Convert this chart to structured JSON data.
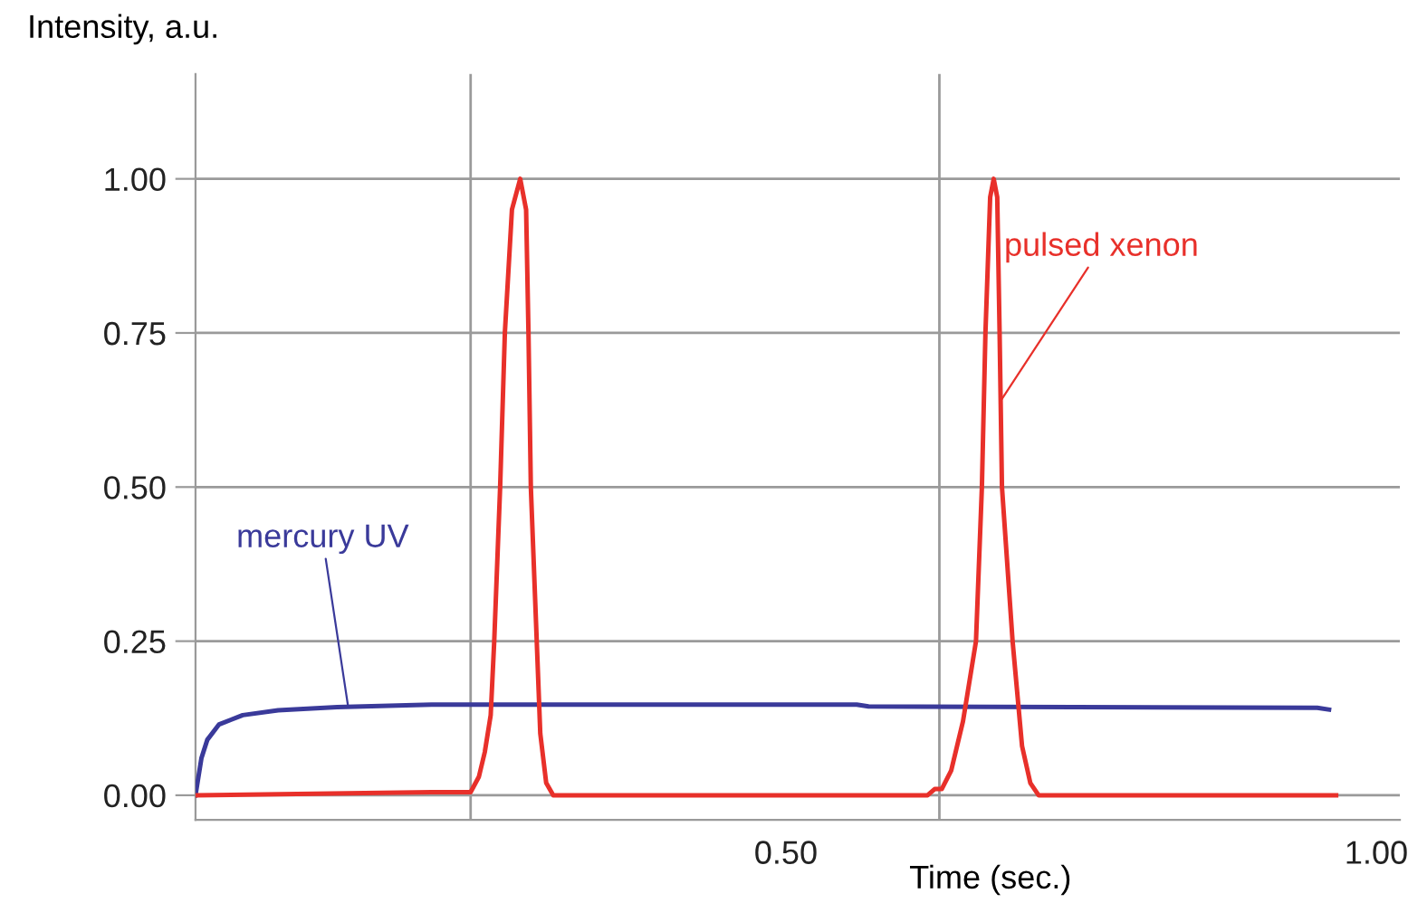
{
  "chart_data": {
    "type": "line",
    "xlabel": "Time (sec.)",
    "ylabel": "Intensity, a.u.",
    "xlim": [
      0,
      1.02
    ],
    "ylim": [
      -0.04,
      1.17
    ],
    "xticks": [
      {
        "value": 0.5,
        "label": "0.50"
      },
      {
        "value": 1.0,
        "label": "1.00"
      }
    ],
    "yticks": [
      {
        "value": 0,
        "label": "0.00"
      },
      {
        "value": 0.25,
        "label": "0.25"
      },
      {
        "value": 0.5,
        "label": "0.50"
      },
      {
        "value": 0.75,
        "label": "0.75"
      },
      {
        "value": 1.0,
        "label": "1.00"
      }
    ],
    "grid": "y",
    "legend": false,
    "marker": "none",
    "line_style": "solid",
    "series": [
      {
        "color": "#3a3a9a",
        "x": [
          0,
          0.005,
          0.01,
          0.02,
          0.04,
          0.07,
          0.12,
          0.2,
          0.4,
          0.56,
          0.57,
          0.95,
          0.96
        ],
        "values": [
          0,
          0.06,
          0.09,
          0.115,
          0.13,
          0.138,
          0.143,
          0.147,
          0.147,
          0.147,
          0.144,
          0.142,
          0.139
        ]
      },
      {
        "color": "#e8302a",
        "x": [
          0,
          0.2,
          0.233,
          0.24,
          0.245,
          0.25,
          0.253,
          0.258,
          0.262,
          0.268,
          0.275,
          0.28,
          0.282,
          0.284,
          0.289,
          0.292,
          0.297,
          0.303,
          0.6,
          0.62,
          0.626,
          0.632,
          0.64,
          0.65,
          0.661,
          0.666,
          0.669,
          0.673,
          0.676,
          0.679,
          0.681,
          0.683,
          0.692,
          0.7,
          0.707,
          0.714,
          0.966
        ],
        "values": [
          0,
          0.005,
          0.005,
          0.03,
          0.07,
          0.13,
          0.25,
          0.5,
          0.75,
          0.95,
          1.0,
          0.95,
          0.75,
          0.5,
          0.25,
          0.1,
          0.02,
          0,
          0,
          0,
          0.01,
          0.01,
          0.04,
          0.12,
          0.25,
          0.5,
          0.75,
          0.97,
          1.0,
          0.97,
          0.75,
          0.5,
          0.25,
          0.08,
          0.02,
          0,
          0
        ]
      }
    ],
    "ref_lines": [
      {
        "axis": "x",
        "value": 0.233,
        "label": null,
        "color": "#9a9a9a"
      },
      {
        "axis": "x",
        "value": 0.63,
        "label": null,
        "color": "#9a9a9a"
      }
    ],
    "annotations": [
      {
        "text": "mercury UV",
        "x": 0.129,
        "y": 0.147
      },
      {
        "text": "pulsed xenon",
        "x": 0.682,
        "y": 0.64
      }
    ]
  }
}
